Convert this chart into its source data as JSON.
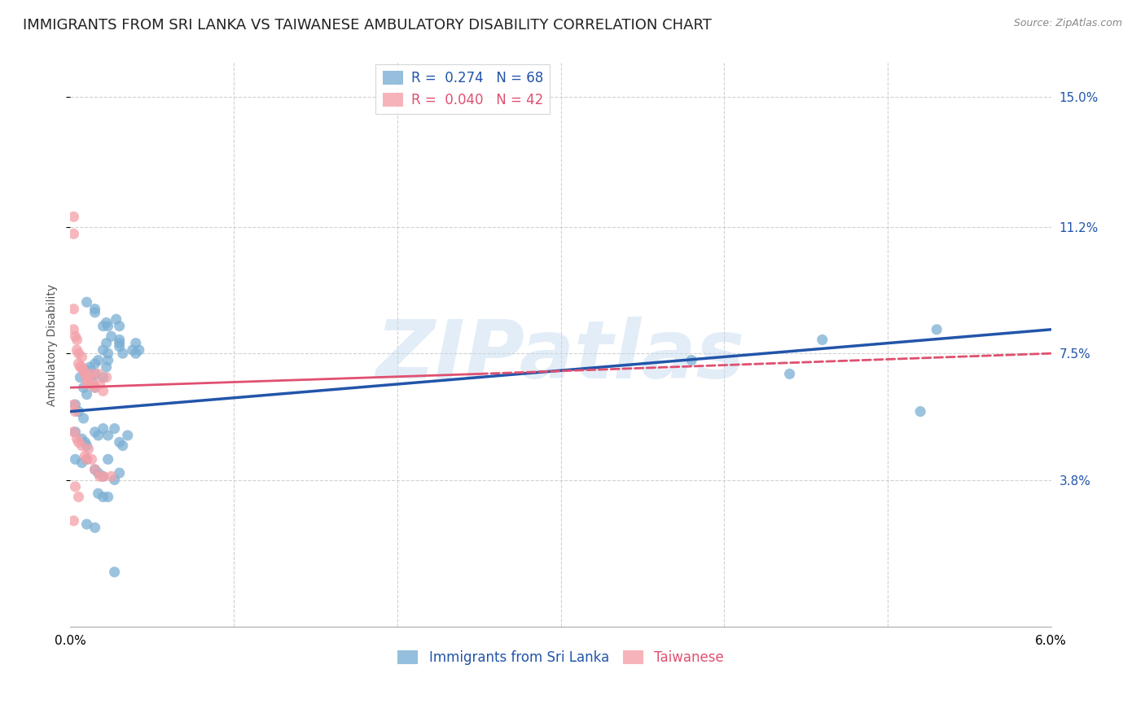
{
  "title": "IMMIGRANTS FROM SRI LANKA VS TAIWANESE AMBULATORY DISABILITY CORRELATION CHART",
  "source": "Source: ZipAtlas.com",
  "ylabel": "Ambulatory Disability",
  "ytick_vals": [
    0.038,
    0.075,
    0.112,
    0.15
  ],
  "ytick_labels": [
    "3.8%",
    "7.5%",
    "11.2%",
    "15.0%"
  ],
  "xlim": [
    0.0,
    0.06
  ],
  "ylim": [
    -0.005,
    0.16
  ],
  "watermark": "ZIPatlas",
  "legend_blue_r": "0.274",
  "legend_blue_n": "68",
  "legend_pink_r": "0.040",
  "legend_pink_n": "42",
  "legend_label_blue": "Immigrants from Sri Lanka",
  "legend_label_pink": "Taiwanese",
  "blue_scatter": [
    [
      0.0003,
      0.06
    ],
    [
      0.0005,
      0.058
    ],
    [
      0.0008,
      0.056
    ],
    [
      0.001,
      0.063
    ],
    [
      0.0008,
      0.065
    ],
    [
      0.0006,
      0.068
    ],
    [
      0.001,
      0.07
    ],
    [
      0.0012,
      0.071
    ],
    [
      0.0015,
      0.069
    ],
    [
      0.0013,
      0.067
    ],
    [
      0.0015,
      0.072
    ],
    [
      0.0017,
      0.073
    ],
    [
      0.0015,
      0.065
    ],
    [
      0.002,
      0.068
    ],
    [
      0.0022,
      0.071
    ],
    [
      0.0023,
      0.073
    ],
    [
      0.0022,
      0.078
    ],
    [
      0.0023,
      0.075
    ],
    [
      0.002,
      0.076
    ],
    [
      0.0025,
      0.08
    ],
    [
      0.003,
      0.079
    ],
    [
      0.003,
      0.078
    ],
    [
      0.003,
      0.077
    ],
    [
      0.0032,
      0.075
    ],
    [
      0.004,
      0.078
    ],
    [
      0.0042,
      0.076
    ],
    [
      0.0038,
      0.076
    ],
    [
      0.004,
      0.075
    ],
    [
      0.001,
      0.09
    ],
    [
      0.0015,
      0.088
    ],
    [
      0.0015,
      0.087
    ],
    [
      0.002,
      0.083
    ],
    [
      0.0022,
      0.084
    ],
    [
      0.0023,
      0.083
    ],
    [
      0.0028,
      0.085
    ],
    [
      0.003,
      0.083
    ],
    [
      0.0003,
      0.052
    ],
    [
      0.0007,
      0.05
    ],
    [
      0.0009,
      0.049
    ],
    [
      0.001,
      0.048
    ],
    [
      0.0015,
      0.052
    ],
    [
      0.0017,
      0.051
    ],
    [
      0.002,
      0.053
    ],
    [
      0.0023,
      0.051
    ],
    [
      0.0027,
      0.053
    ],
    [
      0.003,
      0.049
    ],
    [
      0.0032,
      0.048
    ],
    [
      0.0035,
      0.051
    ],
    [
      0.0003,
      0.044
    ],
    [
      0.0007,
      0.043
    ],
    [
      0.001,
      0.044
    ],
    [
      0.0015,
      0.041
    ],
    [
      0.0017,
      0.04
    ],
    [
      0.0023,
      0.044
    ],
    [
      0.002,
      0.039
    ],
    [
      0.003,
      0.04
    ],
    [
      0.0027,
      0.038
    ],
    [
      0.0017,
      0.034
    ],
    [
      0.002,
      0.033
    ],
    [
      0.0023,
      0.033
    ],
    [
      0.001,
      0.025
    ],
    [
      0.0015,
      0.024
    ],
    [
      0.0027,
      0.011
    ],
    [
      0.046,
      0.079
    ],
    [
      0.053,
      0.082
    ],
    [
      0.038,
      0.073
    ],
    [
      0.044,
      0.069
    ],
    [
      0.052,
      0.058
    ]
  ],
  "pink_scatter": [
    [
      0.0002,
      0.115
    ],
    [
      0.0002,
      0.088
    ],
    [
      0.0002,
      0.082
    ],
    [
      0.0003,
      0.08
    ],
    [
      0.0004,
      0.079
    ],
    [
      0.0004,
      0.076
    ],
    [
      0.0005,
      0.075
    ],
    [
      0.0005,
      0.072
    ],
    [
      0.0006,
      0.071
    ],
    [
      0.0007,
      0.074
    ],
    [
      0.0007,
      0.071
    ],
    [
      0.0008,
      0.07
    ],
    [
      0.0009,
      0.069
    ],
    [
      0.001,
      0.068
    ],
    [
      0.001,
      0.066
    ],
    [
      0.0011,
      0.068
    ],
    [
      0.0012,
      0.066
    ],
    [
      0.0013,
      0.069
    ],
    [
      0.0014,
      0.066
    ],
    [
      0.0015,
      0.065
    ],
    [
      0.0017,
      0.069
    ],
    [
      0.0018,
      0.066
    ],
    [
      0.002,
      0.064
    ],
    [
      0.0022,
      0.068
    ],
    [
      0.0002,
      0.052
    ],
    [
      0.0004,
      0.05
    ],
    [
      0.0005,
      0.049
    ],
    [
      0.0007,
      0.048
    ],
    [
      0.0009,
      0.045
    ],
    [
      0.001,
      0.044
    ],
    [
      0.0011,
      0.047
    ],
    [
      0.0013,
      0.044
    ],
    [
      0.0015,
      0.041
    ],
    [
      0.0018,
      0.039
    ],
    [
      0.002,
      0.039
    ],
    [
      0.0025,
      0.039
    ],
    [
      0.0003,
      0.036
    ],
    [
      0.0005,
      0.033
    ],
    [
      0.0002,
      0.026
    ],
    [
      0.0002,
      0.06
    ],
    [
      0.0003,
      0.058
    ],
    [
      0.0002,
      0.11
    ]
  ],
  "blue_color": "#7BAFD4",
  "pink_color": "#F4A0A8",
  "blue_line_color": "#2255AA",
  "pink_line_color": "#E05070",
  "grid_color": "#CCCCCC",
  "background_color": "#FFFFFF",
  "title_fontsize": 13,
  "axis_label_fontsize": 10,
  "tick_fontsize": 11
}
